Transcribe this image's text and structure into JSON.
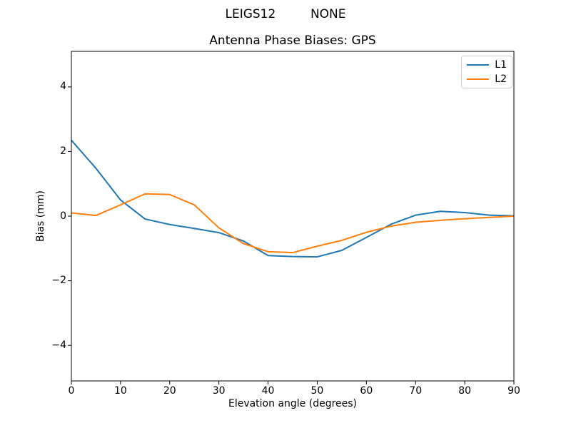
{
  "suptitle": "LEIGS12         NONE",
  "chart_data": {
    "type": "line",
    "title": "Antenna Phase Biases: GPS",
    "xlabel": "Elevation angle (degrees)",
    "ylabel": "Bias (mm)",
    "xlim": [
      0,
      90
    ],
    "ylim": [
      -5.1,
      5.1
    ],
    "xticks": [
      0,
      10,
      20,
      30,
      40,
      50,
      60,
      70,
      80,
      90
    ],
    "yticks": [
      -4,
      -2,
      0,
      2,
      4
    ],
    "grid": false,
    "legend_position": "upper right",
    "x": [
      0,
      5,
      10,
      15,
      20,
      25,
      30,
      35,
      40,
      45,
      50,
      55,
      60,
      65,
      70,
      75,
      80,
      85,
      90
    ],
    "series": [
      {
        "name": "L1",
        "color": "#1f77b4",
        "values": [
          2.35,
          1.48,
          0.5,
          -0.09,
          -0.26,
          -0.38,
          -0.51,
          -0.77,
          -1.22,
          -1.25,
          -1.26,
          -1.06,
          -0.66,
          -0.25,
          0.03,
          0.15,
          0.11,
          0.03,
          0.01
        ]
      },
      {
        "name": "L2",
        "color": "#ff7f0e",
        "values": [
          0.1,
          0.02,
          0.35,
          0.69,
          0.67,
          0.35,
          -0.36,
          -0.85,
          -1.1,
          -1.13,
          -0.93,
          -0.75,
          -0.5,
          -0.31,
          -0.19,
          -0.13,
          -0.08,
          -0.04,
          0.0
        ]
      }
    ]
  },
  "colors": {
    "frame": "#000000",
    "background": "#ffffff",
    "legend_border": "#cccccc"
  }
}
